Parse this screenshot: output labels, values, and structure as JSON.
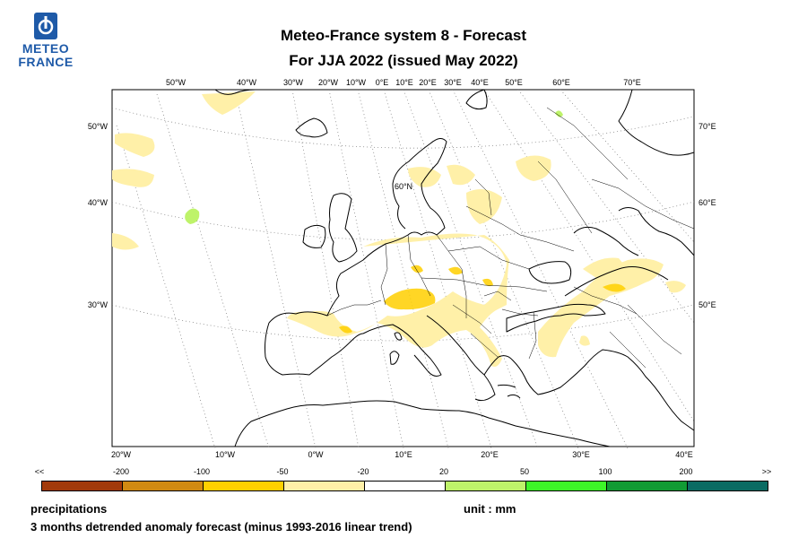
{
  "header": {
    "logo_line1": "METEO",
    "logo_line2": "FRANCE",
    "title": "Meteo-France system 8  -  Forecast",
    "subtitle": "For JJA 2022      (issued May 2022)"
  },
  "map": {
    "top_lon_labels": [
      "50°W",
      "40°W",
      "30°W",
      "20°W",
      "10°W",
      "0°E",
      "10°E",
      "20°E",
      "30°E",
      "40°E",
      "50°E",
      "60°E",
      "70°E"
    ],
    "left_lat_labels": [
      "50°W",
      "40°W",
      "30°W"
    ],
    "right_lat_labels": [
      "70°E",
      "60°E",
      "50°E"
    ],
    "bottom_lon_labels": [
      "20°W",
      "10°W",
      "0°W",
      "10°E",
      "20°E",
      "30°E",
      "40°E"
    ],
    "inner_label": "60°N"
  },
  "legend": {
    "labels": [
      "<<",
      "-200",
      "-100",
      "-50",
      "-20",
      "20",
      "50",
      "100",
      "200",
      ">>"
    ],
    "colors": [
      "#a23a0b",
      "#d18a12",
      "#ffd000",
      "#fff0a8",
      "#ffffff",
      "#bef36a",
      "#3df528",
      "#129b34",
      "#0a6b63"
    ]
  },
  "footer": {
    "variable": "precipitations",
    "unit": "unit : mm",
    "description": "3 months detrended anomaly forecast (minus 1993-2016 linear trend)"
  }
}
